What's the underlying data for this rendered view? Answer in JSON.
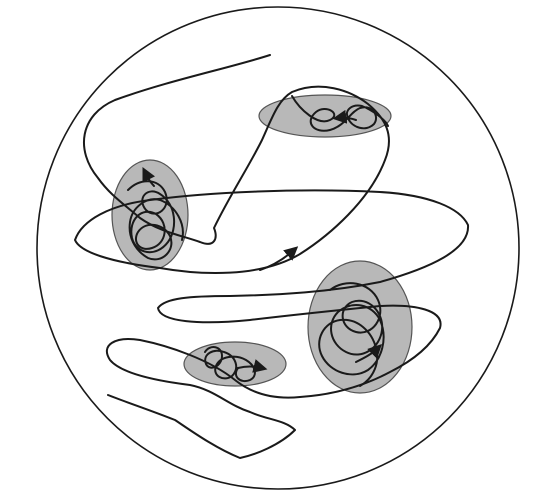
{
  "diagram": {
    "kind": "trajectory-in-circular-domain",
    "regions_count": 5,
    "colors": {
      "stroke": "#1a1a1a",
      "region_fill": "#b8b8b8",
      "region_stroke": "#555555",
      "background": "#ffffff"
    },
    "icons": [
      "arrowhead-icon"
    ]
  }
}
